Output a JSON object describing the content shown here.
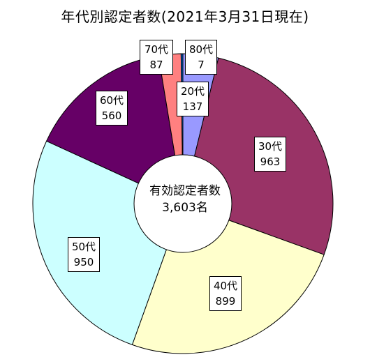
{
  "chart_data": {
    "type": "pie",
    "title": "年代別認定者数(2021年3月31日現在)",
    "categories": [
      "20代",
      "30代",
      "40代",
      "50代",
      "60代",
      "70代",
      "80代"
    ],
    "values": [
      137,
      963,
      899,
      950,
      560,
      87,
      7
    ],
    "value_labels": [
      "137",
      "963",
      "899",
      "950",
      "560",
      "87",
      "7"
    ],
    "colors": [
      "#9999ff",
      "#993366",
      "#ffffcc",
      "#ccffff",
      "#660066",
      "#ff8080",
      "#0066cc"
    ],
    "center_text": {
      "line1": "有効認定者数",
      "line2": "3,603名"
    }
  }
}
